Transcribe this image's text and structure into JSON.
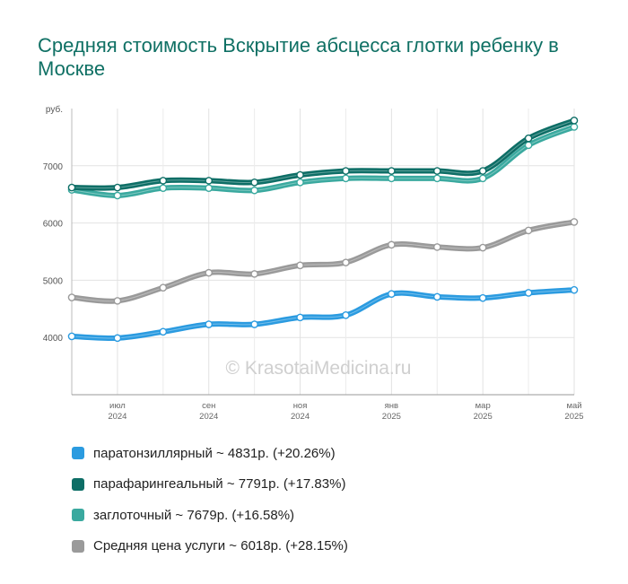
{
  "chart_data": {
    "type": "line",
    "title": "Средняя стоимость Вскрытие абсцесса глотки ребенку в Москве",
    "ylabel": "руб.",
    "ylim": [
      3000,
      8000
    ],
    "yticks": [
      "4000",
      "5000",
      "6000",
      "7000"
    ],
    "grid": true,
    "watermark": "© KrasotaiMedicina.ru",
    "x_ticks": [
      {
        "month": "июл",
        "year": "2024",
        "index": 1
      },
      {
        "month": "сен",
        "year": "2024",
        "index": 3
      },
      {
        "month": "ноя",
        "year": "2024",
        "index": 5
      },
      {
        "month": "янв",
        "year": "2025",
        "index": 7
      },
      {
        "month": "мар",
        "year": "2025",
        "index": 9
      },
      {
        "month": "май",
        "year": "2025",
        "index": 11
      }
    ],
    "n_points": 12,
    "series": [
      {
        "name": "Средняя цена услуги",
        "color": "#9a9a9a",
        "values": [
          4700,
          4640,
          4870,
          5130,
          5110,
          5260,
          5310,
          5620,
          5580,
          5570,
          5870,
          6018
        ]
      },
      {
        "name": "заглоточный",
        "color": "#3aa99f",
        "values": [
          6580,
          6480,
          6610,
          6610,
          6570,
          6710,
          6780,
          6780,
          6780,
          6780,
          7360,
          7679
        ]
      },
      {
        "name": "парафарингеальный",
        "color": "#0d6e66",
        "values": [
          6620,
          6620,
          6740,
          6740,
          6710,
          6840,
          6910,
          6910,
          6910,
          6910,
          7480,
          7791
        ]
      },
      {
        "name": "паратонзиллярный",
        "color": "#2b9be0",
        "values": [
          4020,
          3990,
          4100,
          4230,
          4230,
          4350,
          4390,
          4760,
          4710,
          4690,
          4780,
          4831
        ]
      }
    ]
  },
  "legend": [
    {
      "label": "паратонзиллярный ~ 4831р. (+20.26%)",
      "color": "#2b9be0"
    },
    {
      "label": "парафарингеальный ~ 7791р. (+17.83%)",
      "color": "#0d6e66"
    },
    {
      "label": "заглоточный ~ 7679р. (+16.58%)",
      "color": "#3aa99f"
    },
    {
      "label": "Средняя цена услуги ~ 6018р. (+28.15%)",
      "color": "#9a9a9a"
    }
  ]
}
